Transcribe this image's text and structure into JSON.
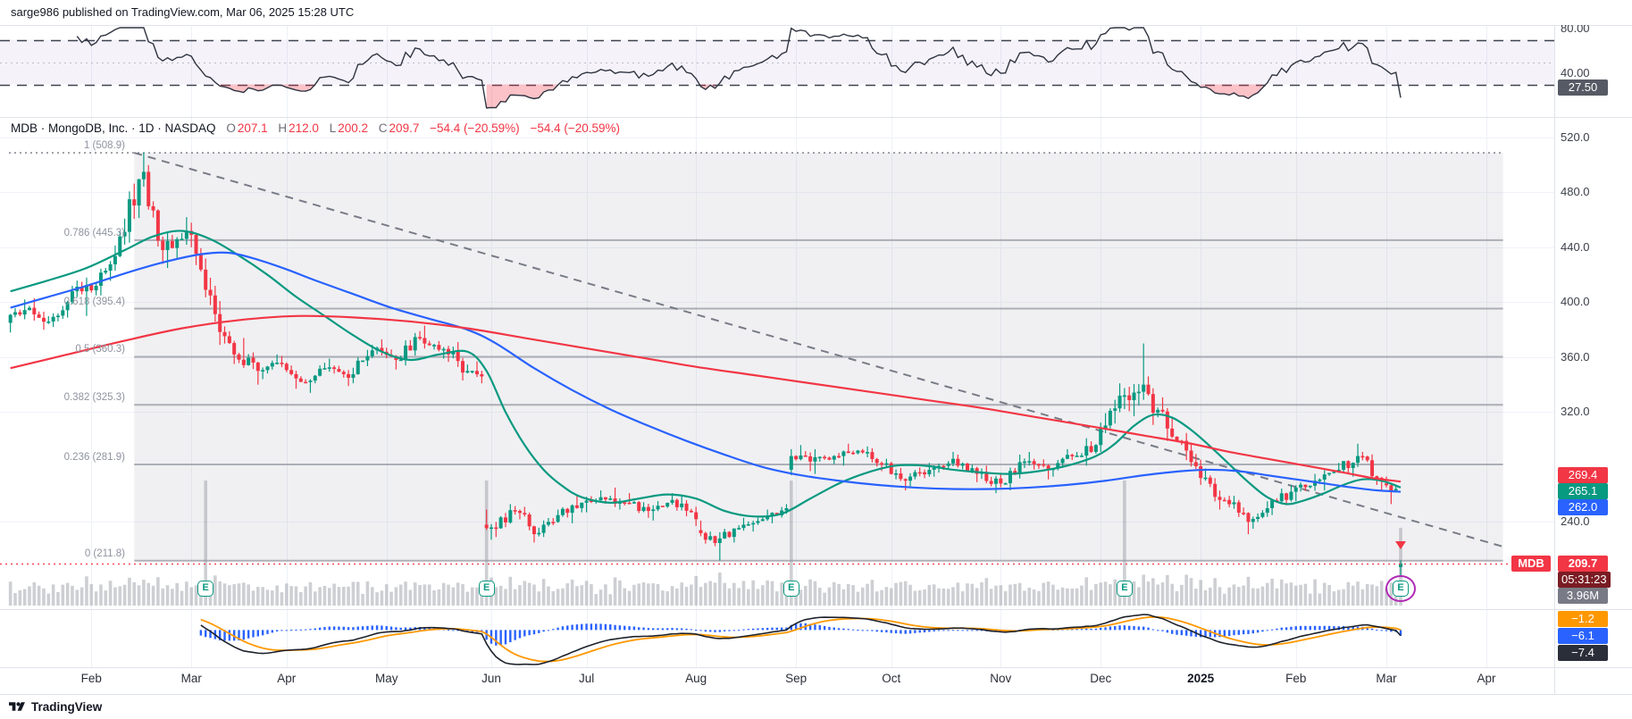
{
  "header": {
    "text": "sarge986 published on TradingView.com, Mar 06, 2025 15:28 UTC"
  },
  "footer": {
    "brand": "TradingView"
  },
  "legend": {
    "title": "MDB · MongoDB, Inc. · 1D · NASDAQ",
    "o_label": "O",
    "o": "207.1",
    "h_label": "H",
    "h": "212.0",
    "l_label": "L",
    "l": "200.2",
    "c_label": "C",
    "c": "209.7",
    "change": "−54.4 (−20.59%)",
    "change_secondary": "−54.4 (−20.59%)"
  },
  "rsi_panel": {
    "ticks": [
      "80.00",
      "40.00"
    ],
    "tick_values": [
      80,
      40
    ],
    "badge": "27.50",
    "badge_color": "#565a64",
    "upper_band": 70,
    "lower_band": 30,
    "mid": 50
  },
  "price_axis": {
    "ticks": [
      "520.0",
      "480.0",
      "440.0",
      "400.0",
      "360.0",
      "320.0",
      "240.0"
    ],
    "tick_values": [
      520,
      480,
      440,
      400,
      360,
      320,
      240
    ]
  },
  "price_badges": {
    "ma_red": {
      "label": "269.4",
      "color": "#f23645"
    },
    "ma_green": {
      "label": "265.1",
      "color": "#089981"
    },
    "ma_blue": {
      "label": "262.0",
      "color": "#2962ff"
    },
    "symbol_label": {
      "label": "MDB",
      "color": "#f23645"
    },
    "last_price": {
      "label": "209.7",
      "color": "#f23645"
    },
    "countdown": {
      "label": "05:31:23",
      "color": "#7a1c23"
    },
    "volume": {
      "label": "3.96M",
      "color": "#787b86"
    }
  },
  "macd_panel": {
    "badges": [
      {
        "label": "−1.2",
        "color": "#ff9800"
      },
      {
        "label": "−6.1",
        "color": "#2962ff"
      },
      {
        "label": "−7.4",
        "color": "#2a2e39"
      }
    ]
  },
  "x_axis": {
    "labels": [
      {
        "text": "Feb",
        "day": 17
      },
      {
        "text": "Mar",
        "day": 38
      },
      {
        "text": "Apr",
        "day": 58
      },
      {
        "text": "May",
        "day": 79
      },
      {
        "text": "Jun",
        "day": 101
      },
      {
        "text": "Jul",
        "day": 121
      },
      {
        "text": "Aug",
        "day": 144
      },
      {
        "text": "Sep",
        "day": 165
      },
      {
        "text": "Oct",
        "day": 185
      },
      {
        "text": "Nov",
        "day": 208
      },
      {
        "text": "Dec",
        "day": 229
      },
      {
        "text": "2025",
        "day": 250,
        "bold": true
      },
      {
        "text": "Feb",
        "day": 270
      },
      {
        "text": "Mar",
        "day": 289
      },
      {
        "text": "Apr",
        "day": 310
      }
    ]
  },
  "earnings": {
    "symbol": "E",
    "day_indices": [
      41,
      100,
      164,
      234,
      292
    ],
    "highlight_last": true
  },
  "chart_data": {
    "type": "candlestick",
    "symbol": "MDB",
    "company": "MongoDB, Inc.",
    "interval": "1D",
    "exchange": "NASDAQ",
    "last_bar": {
      "open": 207.1,
      "high": 212.0,
      "low": 200.2,
      "close": 209.7,
      "change": -54.4,
      "change_pct": -20.59,
      "volume_label": "3.96M"
    },
    "y_range": [
      200,
      530
    ],
    "current_price_line": 209.7,
    "ohlc_weekly": {
      "columns": [
        "start_date",
        "trading_days",
        "open",
        "high",
        "low",
        "close"
      ],
      "rows": [
        [
          "2024-01-08",
          5,
          385,
          402,
          378,
          396
        ],
        [
          "2024-01-16",
          4,
          396,
          403,
          380,
          386
        ],
        [
          "2024-01-22",
          5,
          386,
          412,
          382,
          408
        ],
        [
          "2024-01-29",
          5,
          408,
          418,
          390,
          412
        ],
        [
          "2024-02-05",
          5,
          412,
          452,
          405,
          448
        ],
        [
          "2024-02-12",
          5,
          448,
          508.9,
          442,
          495
        ],
        [
          "2024-02-20",
          4,
          495,
          500,
          428,
          438
        ],
        [
          "2024-02-26",
          5,
          438,
          462,
          425,
          452
        ],
        [
          "2024-03-04",
          5,
          452,
          458,
          398,
          405
        ],
        [
          "2024-03-11",
          5,
          405,
          412,
          355,
          362
        ],
        [
          "2024-03-18",
          5,
          362,
          374,
          340,
          350
        ],
        [
          "2024-03-25",
          4,
          350,
          362,
          344,
          356
        ],
        [
          "2024-04-01",
          5,
          356,
          361,
          337,
          342
        ],
        [
          "2024-04-08",
          5,
          342,
          356,
          334,
          352
        ],
        [
          "2024-04-15",
          5,
          352,
          359,
          339,
          345
        ],
        [
          "2024-04-22",
          5,
          345,
          369,
          341,
          365
        ],
        [
          "2024-04-29",
          5,
          365,
          373,
          351,
          358
        ],
        [
          "2024-05-06",
          5,
          358,
          379,
          354,
          374
        ],
        [
          "2024-05-13",
          5,
          374,
          383,
          359,
          366
        ],
        [
          "2024-05-20",
          5,
          366,
          371,
          343,
          350
        ],
        [
          "2024-05-28",
          3,
          350,
          357,
          341,
          346
        ],
        [
          "2024-05-31",
          2,
          238,
          249,
          227,
          236
        ],
        [
          "2024-06-03",
          5,
          236,
          253,
          229,
          248
        ],
        [
          "2024-06-10",
          5,
          248,
          251,
          225,
          232
        ],
        [
          "2024-06-17",
          4,
          232,
          249,
          229,
          245
        ],
        [
          "2024-06-24",
          5,
          245,
          259,
          239,
          254
        ],
        [
          "2024-07-01",
          4,
          254,
          263,
          247,
          258
        ],
        [
          "2024-07-08",
          5,
          258,
          265,
          249,
          254
        ],
        [
          "2024-07-15",
          5,
          254,
          261,
          243,
          248
        ],
        [
          "2024-07-22",
          5,
          248,
          261,
          241,
          256
        ],
        [
          "2024-07-29",
          5,
          256,
          259,
          237,
          242
        ],
        [
          "2024-08-05",
          5,
          234,
          241,
          211.8,
          228
        ],
        [
          "2024-08-12",
          5,
          228,
          243,
          225,
          238
        ],
        [
          "2024-08-19",
          5,
          238,
          249,
          233,
          244
        ],
        [
          "2024-08-26",
          4,
          244,
          253,
          239,
          250
        ],
        [
          "2024-08-30",
          1,
          278,
          293,
          274,
          288
        ],
        [
          "2024-09-03",
          4,
          288,
          296,
          277,
          284
        ],
        [
          "2024-09-09",
          5,
          284,
          293,
          275,
          288
        ],
        [
          "2024-09-16",
          5,
          288,
          297,
          281,
          292
        ],
        [
          "2024-09-23",
          5,
          292,
          295,
          277,
          282
        ],
        [
          "2024-09-30",
          5,
          282,
          286,
          263,
          270
        ],
        [
          "2024-10-07",
          5,
          270,
          283,
          265,
          278
        ],
        [
          "2024-10-14",
          5,
          278,
          291,
          273,
          286
        ],
        [
          "2024-10-21",
          5,
          286,
          289,
          269,
          275
        ],
        [
          "2024-10-28",
          5,
          275,
          281,
          261,
          268
        ],
        [
          "2024-11-04",
          5,
          268,
          289,
          263,
          284
        ],
        [
          "2024-11-11",
          5,
          284,
          291,
          271,
          278
        ],
        [
          "2024-11-18",
          5,
          278,
          293,
          273,
          288
        ],
        [
          "2024-11-25",
          5,
          288,
          301,
          281,
          296
        ],
        [
          "2024-12-02",
          5,
          296,
          341,
          291,
          332
        ],
        [
          "2024-12-09",
          5,
          332,
          370,
          317,
          340
        ],
        [
          "2024-12-16",
          5,
          340,
          346,
          299,
          308
        ],
        [
          "2024-12-23",
          4,
          308,
          316,
          285,
          292
        ],
        [
          "2024-12-30",
          3,
          292,
          297,
          267,
          272
        ],
        [
          "2025-01-06",
          5,
          272,
          279,
          249,
          256
        ],
        [
          "2025-01-13",
          5,
          256,
          259,
          231,
          240
        ],
        [
          "2025-01-21",
          4,
          240,
          255,
          235,
          250
        ],
        [
          "2025-01-27",
          5,
          250,
          267,
          245,
          262
        ],
        [
          "2025-02-03",
          5,
          262,
          275,
          255,
          270
        ],
        [
          "2025-02-10",
          5,
          270,
          283,
          263,
          278
        ],
        [
          "2025-02-18",
          4,
          278,
          297,
          273,
          288
        ],
        [
          "2025-02-24",
          5,
          288,
          291,
          263,
          270
        ],
        [
          "2025-03-03",
          3,
          268,
          273,
          253,
          264
        ],
        [
          "2025-03-06",
          1,
          207.1,
          212.0,
          200.2,
          209.7
        ]
      ]
    },
    "fibonacci": {
      "high": 508.9,
      "low": 211.8,
      "zone_start_day": 26,
      "zone_end_day": 314,
      "levels": [
        {
          "r": 1,
          "price": 508.9,
          "label": "1 (508.9)"
        },
        {
          "r": 0.786,
          "price": 445.3,
          "label": "0.786 (445.3)"
        },
        {
          "r": 0.618,
          "price": 395.4,
          "label": "0.618 (395.4)"
        },
        {
          "r": 0.5,
          "price": 360.3,
          "label": "0.5 (360.3)"
        },
        {
          "r": 0.382,
          "price": 325.3,
          "label": "0.382 (325.3)"
        },
        {
          "r": 0.236,
          "price": 281.9,
          "label": "0.236 (281.9)"
        },
        {
          "r": 0,
          "price": 211.8,
          "label": "0 (211.8)"
        }
      ]
    },
    "trendline": {
      "from": [
        26,
        508.9
      ],
      "to": [
        314,
        222
      ],
      "style": "dashed"
    },
    "moving_averages": [
      {
        "name": "fast",
        "color": "#089981",
        "last": 265.1,
        "points": [
          [
            0,
            408
          ],
          [
            8,
            416
          ],
          [
            16,
            425
          ],
          [
            24,
            438
          ],
          [
            30,
            448
          ],
          [
            36,
            452
          ],
          [
            42,
            446
          ],
          [
            48,
            434
          ],
          [
            54,
            420
          ],
          [
            60,
            404
          ],
          [
            66,
            390
          ],
          [
            72,
            376
          ],
          [
            78,
            364
          ],
          [
            84,
            358
          ],
          [
            90,
            362
          ],
          [
            96,
            364
          ],
          [
            100,
            350
          ],
          [
            104,
            320
          ],
          [
            108,
            296
          ],
          [
            112,
            278
          ],
          [
            116,
            266
          ],
          [
            120,
            258
          ],
          [
            126,
            254
          ],
          [
            132,
            257
          ],
          [
            138,
            260
          ],
          [
            144,
            257
          ],
          [
            150,
            248
          ],
          [
            156,
            244
          ],
          [
            162,
            246
          ],
          [
            168,
            257
          ],
          [
            174,
            268
          ],
          [
            180,
            276
          ],
          [
            186,
            281
          ],
          [
            192,
            281
          ],
          [
            198,
            278
          ],
          [
            204,
            276
          ],
          [
            210,
            275
          ],
          [
            216,
            277
          ],
          [
            222,
            281
          ],
          [
            228,
            288
          ],
          [
            232,
            297
          ],
          [
            236,
            310
          ],
          [
            240,
            318
          ],
          [
            244,
            316
          ],
          [
            248,
            307
          ],
          [
            252,
            295
          ],
          [
            256,
            282
          ],
          [
            260,
            269
          ],
          [
            264,
            258
          ],
          [
            268,
            253
          ],
          [
            272,
            256
          ],
          [
            276,
            261
          ],
          [
            280,
            267
          ],
          [
            284,
            271
          ],
          [
            288,
            270
          ],
          [
            292,
            265.1
          ]
        ]
      },
      {
        "name": "medium",
        "color": "#2962ff",
        "last": 262.0,
        "points": [
          [
            0,
            396
          ],
          [
            8,
            404
          ],
          [
            16,
            412
          ],
          [
            24,
            421
          ],
          [
            32,
            429
          ],
          [
            40,
            435
          ],
          [
            46,
            436
          ],
          [
            52,
            431
          ],
          [
            58,
            424
          ],
          [
            64,
            416
          ],
          [
            72,
            406
          ],
          [
            80,
            396
          ],
          [
            88,
            388
          ],
          [
            96,
            380
          ],
          [
            102,
            370
          ],
          [
            110,
            352
          ],
          [
            118,
            336
          ],
          [
            126,
            322
          ],
          [
            134,
            310
          ],
          [
            142,
            299
          ],
          [
            150,
            289
          ],
          [
            158,
            280
          ],
          [
            166,
            274
          ],
          [
            174,
            270
          ],
          [
            182,
            267
          ],
          [
            190,
            265
          ],
          [
            198,
            264
          ],
          [
            206,
            264
          ],
          [
            214,
            265
          ],
          [
            222,
            267
          ],
          [
            230,
            270
          ],
          [
            238,
            274
          ],
          [
            246,
            277
          ],
          [
            252,
            278
          ],
          [
            258,
            277
          ],
          [
            264,
            274
          ],
          [
            270,
            271
          ],
          [
            276,
            268
          ],
          [
            282,
            265
          ],
          [
            287,
            263
          ],
          [
            292,
            262
          ]
        ]
      },
      {
        "name": "slow",
        "color": "#f23645",
        "last": 269.4,
        "points": [
          [
            0,
            352
          ],
          [
            12,
            362
          ],
          [
            24,
            372
          ],
          [
            36,
            381
          ],
          [
            48,
            387
          ],
          [
            60,
            390
          ],
          [
            72,
            389
          ],
          [
            84,
            386
          ],
          [
            96,
            381
          ],
          [
            108,
            374
          ],
          [
            120,
            367
          ],
          [
            132,
            360
          ],
          [
            144,
            353
          ],
          [
            156,
            347
          ],
          [
            168,
            341
          ],
          [
            180,
            335
          ],
          [
            192,
            329
          ],
          [
            204,
            323
          ],
          [
            216,
            316
          ],
          [
            228,
            309
          ],
          [
            238,
            303
          ],
          [
            248,
            297
          ],
          [
            256,
            291
          ],
          [
            264,
            286
          ],
          [
            272,
            281
          ],
          [
            280,
            276
          ],
          [
            286,
            272
          ],
          [
            292,
            269.4
          ]
        ]
      }
    ],
    "indicators": {
      "rsi": {
        "period": 14,
        "last": 27.5,
        "bands": [
          70,
          30
        ]
      },
      "macd": {
        "fast": 12,
        "slow": 26,
        "signal_period": 9,
        "last_macd": -7.4,
        "last_signal": -1.2,
        "last_hist": -6.1
      }
    }
  }
}
